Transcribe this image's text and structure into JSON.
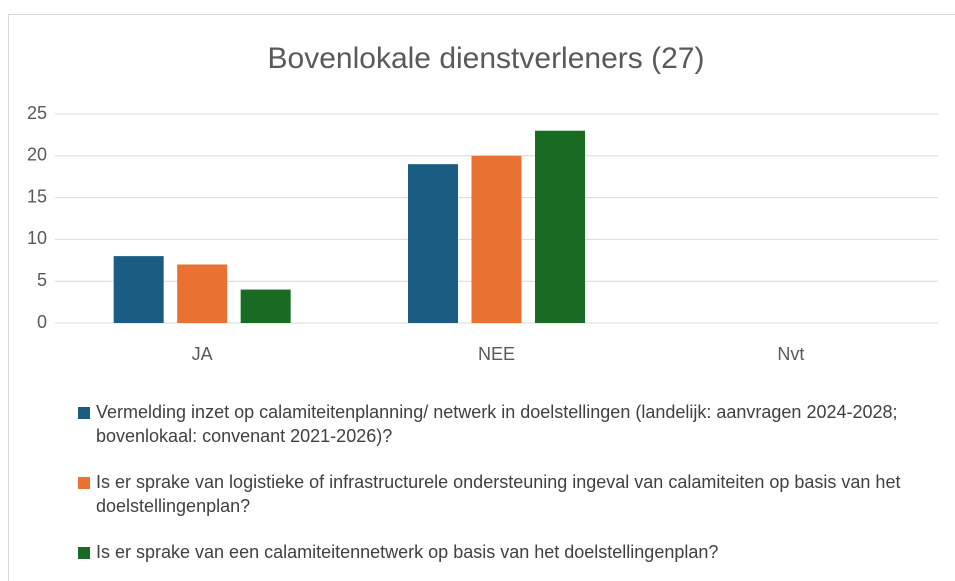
{
  "chart_data": {
    "type": "bar",
    "title": "Bovenlokale dienstverleners (27)",
    "categories": [
      "JA",
      "NEE",
      "Nvt"
    ],
    "series": [
      {
        "name": "Vermelding inzet op calamiteitenplanning/ netwerk in doelstellingen (landelijk: aanvragen 2024-2028; bovenlokaal: convenant 2021-2026)?",
        "color": "#1b5c82",
        "values": [
          8,
          19,
          0
        ]
      },
      {
        "name": "Is er sprake van logistieke of infrastructurele ondersteuning ingeval van calamiteiten op basis van het doelstellingenplan?",
        "color": "#e97132",
        "values": [
          7,
          20,
          0
        ]
      },
      {
        "name": "Is er sprake van een calamiteitennetwerk op basis van het doelstellingenplan?",
        "color": "#196b24",
        "values": [
          4,
          23,
          0
        ]
      }
    ],
    "ylim": [
      0,
      25
    ],
    "yticks": [
      0,
      5,
      10,
      15,
      20,
      25
    ],
    "grid": true,
    "legend": "bottom"
  }
}
